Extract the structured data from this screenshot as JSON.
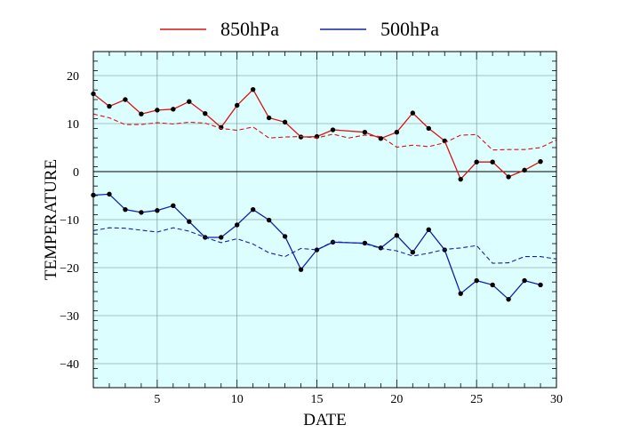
{
  "chart_data": {
    "type": "line",
    "xlabel": "DATE",
    "ylabel": "TEMPERATURE",
    "xlim": [
      1,
      30
    ],
    "ylim": [
      -45,
      25
    ],
    "xticks": [
      5,
      10,
      15,
      20,
      25,
      30
    ],
    "yticks": [
      -40,
      -30,
      -20,
      -10,
      0,
      10,
      20
    ],
    "grid": true,
    "legend_position": "top-center",
    "background_color": "#ddfefe",
    "series": [
      {
        "name": "850hPa",
        "color": "#dd1111",
        "style": "solid-markers",
        "x": [
          1,
          2,
          3,
          4,
          5,
          6,
          7,
          8,
          9,
          10,
          11,
          12,
          13,
          14,
          15,
          16,
          18,
          19,
          20,
          21,
          22,
          23,
          24,
          25,
          26,
          27,
          28,
          29
        ],
        "values": [
          16.2,
          13.6,
          15.0,
          12.0,
          12.8,
          13.0,
          14.6,
          12.1,
          9.2,
          13.8,
          17.1,
          11.2,
          10.3,
          7.2,
          7.3,
          8.7,
          8.2,
          6.9,
          8.2,
          12.2,
          9.0,
          6.4,
          -1.6,
          2.0,
          2.0,
          -1.1,
          0.3,
          2.1
        ]
      },
      {
        "name": "",
        "color": "#dd1111",
        "style": "dashed",
        "x": [
          1,
          2,
          3,
          4,
          5,
          6,
          7,
          8,
          9,
          10,
          11,
          12,
          13,
          14,
          15,
          16,
          17,
          18,
          19,
          20,
          21,
          22,
          23,
          24,
          25,
          26,
          27,
          28,
          29,
          30
        ],
        "values": [
          12.0,
          11.2,
          9.8,
          9.8,
          10.2,
          9.9,
          10.3,
          10.1,
          9.0,
          8.6,
          9.3,
          7.0,
          7.2,
          7.3,
          7.0,
          7.8,
          7.0,
          7.6,
          7.3,
          5.1,
          5.5,
          5.2,
          6.0,
          7.6,
          7.7,
          4.5,
          4.6,
          4.6,
          5.0,
          6.6
        ]
      },
      {
        "name": "500hPa",
        "color": "#1122aa",
        "style": "solid-markers",
        "x": [
          1,
          2,
          3,
          4,
          5,
          6,
          7,
          8,
          9,
          10,
          11,
          12,
          13,
          14,
          15,
          16,
          18,
          19,
          20,
          21,
          22,
          23,
          24,
          25,
          26,
          27,
          28,
          29
        ],
        "values": [
          -4.9,
          -4.7,
          -7.9,
          -8.5,
          -8.1,
          -7.1,
          -10.4,
          -13.7,
          -13.7,
          -11.1,
          -7.9,
          -10.1,
          -13.5,
          -20.4,
          -16.3,
          -14.7,
          -14.9,
          -15.9,
          -13.3,
          -16.8,
          -12.1,
          -16.3,
          -25.4,
          -22.7,
          -23.6,
          -26.6,
          -22.7,
          -23.6
        ]
      },
      {
        "name": "",
        "color": "#1122aa",
        "style": "dashed",
        "x": [
          1,
          2,
          3,
          4,
          5,
          6,
          7,
          8,
          9,
          10,
          11,
          12,
          13,
          14,
          15,
          16,
          17,
          18,
          19,
          20,
          21,
          22,
          23,
          24,
          25,
          26,
          27,
          28,
          29,
          30
        ],
        "values": [
          -12.3,
          -11.7,
          -11.8,
          -12.2,
          -12.6,
          -11.7,
          -12.4,
          -13.7,
          -14.8,
          -14.0,
          -15.1,
          -16.9,
          -17.7,
          -16.0,
          -16.3,
          -14.6,
          -14.8,
          -15.0,
          -16.0,
          -16.5,
          -17.6,
          -17.0,
          -16.2,
          -15.9,
          -15.4,
          -19.1,
          -19.0,
          -17.7,
          -17.7,
          -18.2
        ]
      }
    ],
    "legend": [
      {
        "label": "850hPa",
        "color": "#dd1111"
      },
      {
        "label": "500hPa",
        "color": "#1122aa"
      }
    ]
  }
}
